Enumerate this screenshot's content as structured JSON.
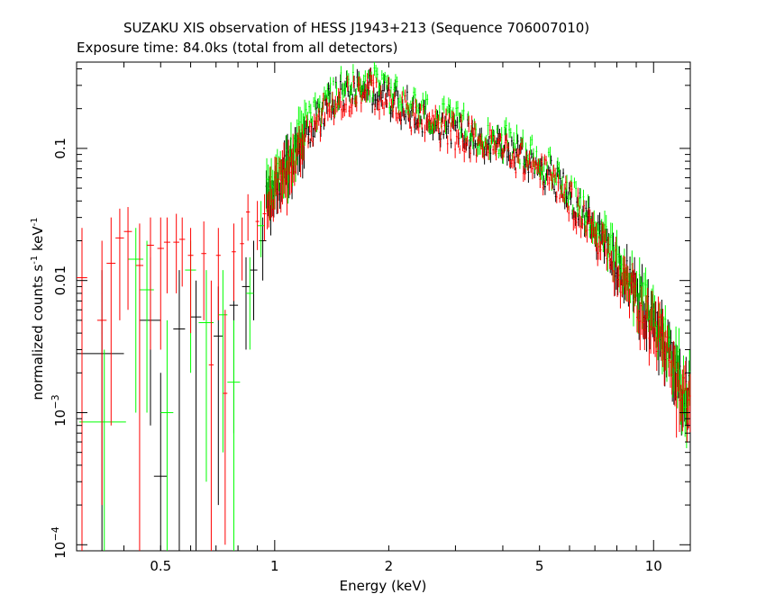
{
  "chart_data": {
    "type": "scatter",
    "title": "SUZAKU XIS observation of HESS J1943+213 (Sequence 706007010)",
    "subtitle": "Exposure time: 84.0ks (total from all detectors)",
    "xlabel": "Energy (keV)",
    "ylabel_main": "normalized counts s",
    "ylabel_exp1": "-1",
    "ylabel_mid": " keV",
    "ylabel_exp2": "-1",
    "x_scale": "log",
    "y_scale": "log",
    "xlim": [
      0.3,
      12.5
    ],
    "ylim": [
      9e-05,
      0.45
    ],
    "x_ticks": [
      {
        "value": 0.5,
        "label": "0.5"
      },
      {
        "value": 1,
        "label": "1"
      },
      {
        "value": 2,
        "label": "2"
      },
      {
        "value": 5,
        "label": "5"
      },
      {
        "value": 10,
        "label": "10"
      }
    ],
    "y_ticks": [
      {
        "value": 0.0001,
        "base": "10",
        "exp": "−4"
      },
      {
        "value": 0.001,
        "base": "10",
        "exp": "−3"
      },
      {
        "value": 0.01,
        "label": "0.01"
      },
      {
        "value": 0.1,
        "label": "0.1"
      }
    ],
    "grid": false,
    "series": [
      {
        "color": "#ff0000",
        "low_points": [
          {
            "x": 0.31,
            "y": 0.0105,
            "xerr": 0.01,
            "ylo": 9e-05,
            "yhi": 0.025
          },
          {
            "x": 0.35,
            "y": 0.005,
            "xerr": 0.01,
            "ylo": 0.0002,
            "yhi": 0.02
          },
          {
            "x": 0.37,
            "y": 0.0135,
            "xerr": 0.01,
            "ylo": 0.0008,
            "yhi": 0.03
          },
          {
            "x": 0.39,
            "y": 0.021,
            "xerr": 0.01,
            "ylo": 0.005,
            "yhi": 0.035
          },
          {
            "x": 0.41,
            "y": 0.0235,
            "xerr": 0.01,
            "ylo": 0.006,
            "yhi": 0.036
          },
          {
            "x": 0.44,
            "y": 0.013,
            "xerr": 0.01,
            "ylo": 9e-05,
            "yhi": 0.027
          },
          {
            "x": 0.47,
            "y": 0.0185,
            "xerr": 0.01,
            "ylo": 0.003,
            "yhi": 0.03
          },
          {
            "x": 0.5,
            "y": 0.0175,
            "xerr": 0.01,
            "ylo": 0.003,
            "yhi": 0.03
          },
          {
            "x": 0.52,
            "y": 0.0195,
            "xerr": 0.01,
            "ylo": 0.008,
            "yhi": 0.03
          },
          {
            "x": 0.55,
            "y": 0.0195,
            "xerr": 0.01,
            "ylo": 0.008,
            "yhi": 0.032
          },
          {
            "x": 0.57,
            "y": 0.0205,
            "xerr": 0.01,
            "ylo": 0.009,
            "yhi": 0.03
          },
          {
            "x": 0.6,
            "y": 0.0155,
            "xerr": 0.01,
            "ylo": 0.004,
            "yhi": 0.025
          },
          {
            "x": 0.65,
            "y": 0.016,
            "xerr": 0.01,
            "ylo": 0.005,
            "yhi": 0.028
          },
          {
            "x": 0.68,
            "y": 0.0023,
            "xerr": 0.01,
            "ylo": 9e-05,
            "yhi": 0.01
          },
          {
            "x": 0.71,
            "y": 0.0155,
            "xerr": 0.01,
            "ylo": 0.005,
            "yhi": 0.025
          },
          {
            "x": 0.74,
            "y": 0.0014,
            "xerr": 0.01,
            "ylo": 0.0001,
            "yhi": 0.006
          },
          {
            "x": 0.78,
            "y": 0.0165,
            "xerr": 0.01,
            "ylo": 0.007,
            "yhi": 0.027
          },
          {
            "x": 0.82,
            "y": 0.019,
            "xerr": 0.01,
            "ylo": 0.01,
            "yhi": 0.03
          },
          {
            "x": 0.85,
            "y": 0.033,
            "xerr": 0.01,
            "ylo": 0.02,
            "yhi": 0.045
          },
          {
            "x": 0.9,
            "y": 0.028,
            "xerr": 0.01,
            "ylo": 0.017,
            "yhi": 0.04
          },
          {
            "x": 0.94,
            "y": 0.032,
            "xerr": 0.01,
            "ylo": 0.02,
            "yhi": 0.045
          }
        ]
      },
      {
        "color": "#000000",
        "low_points": [
          {
            "x": 0.35,
            "y": 0.0028,
            "xerr": 0.05,
            "ylo": 9e-05,
            "yhi": 0.012
          },
          {
            "x": 0.47,
            "y": 0.005,
            "xerr": 0.03,
            "ylo": 0.0008,
            "yhi": 0.015
          },
          {
            "x": 0.5,
            "y": 0.00033,
            "xerr": 0.02,
            "ylo": 9e-05,
            "yhi": 0.002
          },
          {
            "x": 0.56,
            "y": 0.0043,
            "xerr": 0.02,
            "ylo": 9e-05,
            "yhi": 0.012
          },
          {
            "x": 0.62,
            "y": 0.0053,
            "xerr": 0.02,
            "ylo": 9e-05,
            "yhi": 0.01
          },
          {
            "x": 0.71,
            "y": 0.0038,
            "xerr": 0.02,
            "ylo": 0.0002,
            "yhi": 0.009
          },
          {
            "x": 0.78,
            "y": 0.0065,
            "xerr": 0.02,
            "ylo": 0.0007,
            "yhi": 0.012
          },
          {
            "x": 0.84,
            "y": 0.009,
            "xerr": 0.02,
            "ylo": 0.003,
            "yhi": 0.015
          },
          {
            "x": 0.88,
            "y": 0.012,
            "xerr": 0.02,
            "ylo": 0.005,
            "yhi": 0.02
          },
          {
            "x": 0.93,
            "y": 0.02,
            "xerr": 0.02,
            "ylo": 0.01,
            "yhi": 0.03
          }
        ]
      },
      {
        "color": "#00ff00",
        "low_points": [
          {
            "x": 0.355,
            "y": 0.00085,
            "xerr": 0.05,
            "ylo": 9e-05,
            "yhi": 0.003
          },
          {
            "x": 0.43,
            "y": 0.0145,
            "xerr": 0.02,
            "ylo": 0.001,
            "yhi": 0.025
          },
          {
            "x": 0.46,
            "y": 0.0085,
            "xerr": 0.02,
            "ylo": 0.001,
            "yhi": 0.02
          },
          {
            "x": 0.52,
            "y": 0.001,
            "xerr": 0.02,
            "ylo": 9e-05,
            "yhi": 0.005
          },
          {
            "x": 0.6,
            "y": 0.012,
            "xerr": 0.02,
            "ylo": 0.002,
            "yhi": 0.02
          },
          {
            "x": 0.66,
            "y": 0.0048,
            "xerr": 0.03,
            "ylo": 0.0003,
            "yhi": 0.012
          },
          {
            "x": 0.73,
            "y": 0.0055,
            "xerr": 0.02,
            "ylo": 0.0005,
            "yhi": 0.012
          },
          {
            "x": 0.78,
            "y": 0.0017,
            "xerr": 0.03,
            "ylo": 9e-05,
            "yhi": 0.005
          },
          {
            "x": 0.86,
            "y": 0.008,
            "xerr": 0.02,
            "ylo": 0.003,
            "yhi": 0.015
          },
          {
            "x": 0.92,
            "y": 0.026,
            "xerr": 0.02,
            "ylo": 0.015,
            "yhi": 0.04
          }
        ]
      }
    ],
    "dense_shape": [
      {
        "x": 0.95,
        "y": 0.04
      },
      {
        "x": 1.0,
        "y": 0.05
      },
      {
        "x": 1.1,
        "y": 0.08
      },
      {
        "x": 1.2,
        "y": 0.13
      },
      {
        "x": 1.35,
        "y": 0.2
      },
      {
        "x": 1.5,
        "y": 0.26
      },
      {
        "x": 1.7,
        "y": 0.3
      },
      {
        "x": 1.9,
        "y": 0.27
      },
      {
        "x": 2.1,
        "y": 0.22
      },
      {
        "x": 2.5,
        "y": 0.17
      },
      {
        "x": 3.0,
        "y": 0.14
      },
      {
        "x": 3.5,
        "y": 0.12
      },
      {
        "x": 4.0,
        "y": 0.105
      },
      {
        "x": 5.0,
        "y": 0.075
      },
      {
        "x": 6.0,
        "y": 0.045
      },
      {
        "x": 7.0,
        "y": 0.025
      },
      {
        "x": 8.0,
        "y": 0.013
      },
      {
        "x": 9.0,
        "y": 0.008
      },
      {
        "x": 10.0,
        "y": 0.005
      },
      {
        "x": 11.0,
        "y": 0.003
      },
      {
        "x": 12.0,
        "y": 0.0015
      }
    ]
  }
}
